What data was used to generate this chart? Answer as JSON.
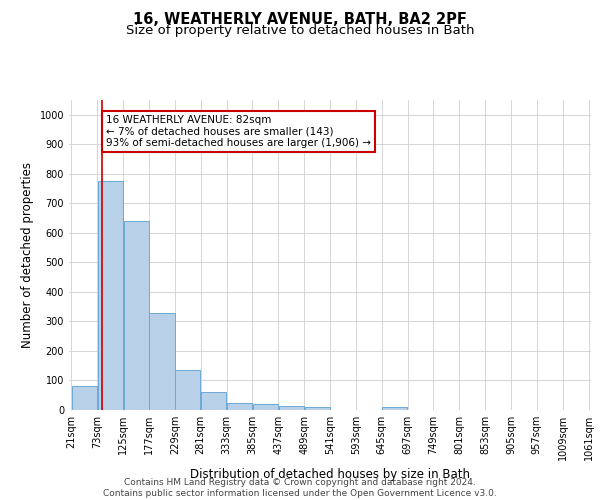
{
  "title_line1": "16, WEATHERLY AVENUE, BATH, BA2 2PF",
  "title_line2": "Size of property relative to detached houses in Bath",
  "xlabel": "Distribution of detached houses by size in Bath",
  "ylabel": "Number of detached properties",
  "bin_edges": [
    21,
    73,
    125,
    177,
    229,
    281,
    333,
    385,
    437,
    489,
    541,
    593,
    645,
    697,
    749,
    801,
    853,
    905,
    957,
    1009,
    1061
  ],
  "bar_heights": [
    80,
    775,
    640,
    330,
    135,
    60,
    25,
    20,
    15,
    10,
    0,
    0,
    10,
    0,
    0,
    0,
    0,
    0,
    0,
    0
  ],
  "bar_color": "#b8d0e8",
  "bar_edge_color": "#6aaad4",
  "property_size": 82,
  "property_line_color": "#cc0000",
  "annotation_line1": "16 WEATHERLY AVENUE: 82sqm",
  "annotation_line2": "← 7% of detached houses are smaller (143)",
  "annotation_line3": "93% of semi-detached houses are larger (1,906) →",
  "annotation_box_facecolor": "#ffffff",
  "annotation_box_edgecolor": "#cc0000",
  "ylim": [
    0,
    1050
  ],
  "yticks": [
    0,
    100,
    200,
    300,
    400,
    500,
    600,
    700,
    800,
    900,
    1000
  ],
  "grid_color": "#d0d0d0",
  "background_color": "#ffffff",
  "footer_line1": "Contains HM Land Registry data © Crown copyright and database right 2024.",
  "footer_line2": "Contains public sector information licensed under the Open Government Licence v3.0.",
  "title_fontsize": 10.5,
  "subtitle_fontsize": 9.5,
  "axis_label_fontsize": 8.5,
  "tick_fontsize": 7,
  "annotation_fontsize": 7.5,
  "footer_fontsize": 6.5
}
